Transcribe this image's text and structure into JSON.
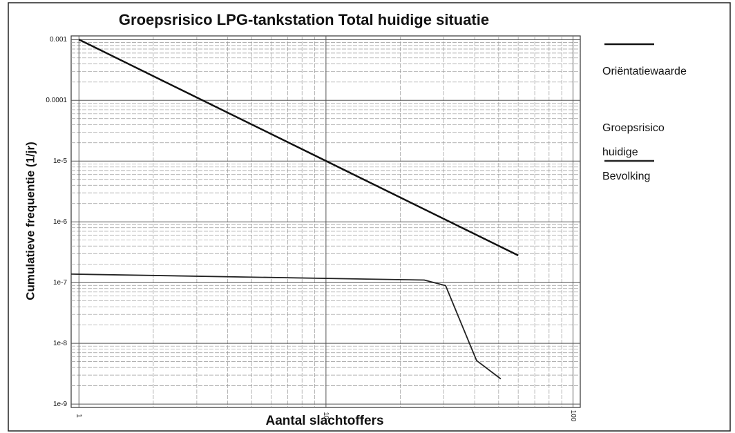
{
  "chart_data": {
    "type": "line",
    "title": "Groepsrisico LPG-tankstation Total huidige situatie",
    "x_label": "Aantal slachtoffers",
    "y_label": "Cumulatieve frequentie (1/jr)",
    "xscale": "log",
    "yscale": "log",
    "grid": true,
    "minor_grid": true,
    "legend": "right",
    "xlim": [
      0.93,
      107
    ],
    "xticks": [
      1,
      10,
      100
    ],
    "ylim": [
      8.8e-10,
      0.00115
    ],
    "yticks": [
      0.001,
      0.0001,
      {
        "value": 1e-05,
        "label": "1e-5"
      },
      {
        "value": 1e-06,
        "label": "1e-6"
      },
      {
        "value": 1e-07,
        "label": "1e-7"
      },
      {
        "value": 1e-08,
        "label": "1e-8"
      },
      {
        "value": 1e-09,
        "label": "1e-9"
      }
    ],
    "series": [
      {
        "name": "Oriëntatiewaarde",
        "color": "#111111",
        "x": [
          1,
          60
        ],
        "values": [
          0.001,
          2.8e-07
        ]
      },
      {
        "name": "Groepsrisico huidige Bevolking",
        "color": "#222222",
        "x": [
          0.93,
          25,
          30.5,
          40.7,
          51
        ],
        "values": [
          1.38e-07,
          1.1e-07,
          8.9e-08,
          5.2e-09,
          2.6e-09
        ]
      }
    ]
  }
}
